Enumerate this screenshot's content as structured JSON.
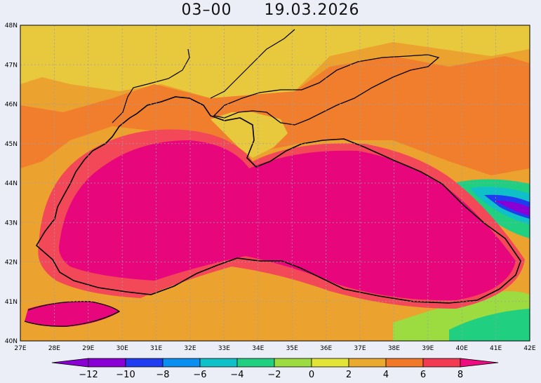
{
  "header": {
    "time": "03–00",
    "date": "19.03.2026"
  },
  "axes": {
    "lon_labels": [
      "27E",
      "28E",
      "29E",
      "30E",
      "31E",
      "32E",
      "33E",
      "34E",
      "35E",
      "36E",
      "37E",
      "38E",
      "39E",
      "40E",
      "41E",
      "42E"
    ],
    "lat_labels": [
      "48N",
      "47N",
      "46N",
      "45N",
      "44N",
      "43N",
      "42N",
      "41N",
      "40N"
    ]
  },
  "legend": {
    "labels": [
      "−12",
      "−10",
      "−8",
      "−6",
      "−4",
      "−2",
      "0",
      "2",
      "4",
      "6",
      "8"
    ],
    "colors": [
      "#8a00d4",
      "#1f3cf0",
      "#0a8ef0",
      "#10c0c8",
      "#20cf80",
      "#9cdc40",
      "#e4e438",
      "#eaaa30",
      "#f07828",
      "#f23a52",
      "#ee0a80"
    ]
  },
  "colors": {
    "background": "#ebeef7",
    "land_cold": "#e8c83c",
    "land_mid": "#eca22e",
    "land_warm": "#f07e2c",
    "coast_warm": "#f24858",
    "sea": "#e8067c",
    "coastline": "#000000"
  }
}
